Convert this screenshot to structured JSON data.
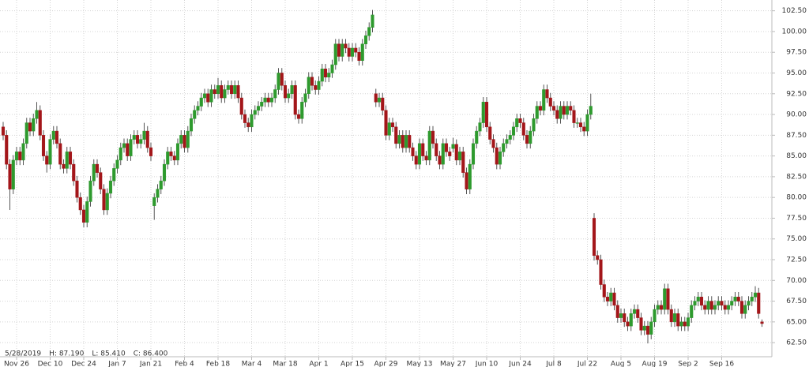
{
  "chart_data": {
    "type": "candlestick",
    "info": [
      "5/28/2019",
      "H: 87.190",
      "L: 85.410",
      "C: 86.400"
    ],
    "up_color": "#2e9a2e",
    "down_color": "#a3161a",
    "grid": true,
    "ylim": [
      60.8,
      103.8
    ],
    "yticks": [
      {
        "value": 62.5,
        "label": "62.50"
      },
      {
        "value": 65,
        "label": "65.00"
      },
      {
        "value": 67.5,
        "label": "67.50"
      },
      {
        "value": 70,
        "label": "70.00"
      },
      {
        "value": 72.5,
        "label": "72.50"
      },
      {
        "value": 75,
        "label": "75.00"
      },
      {
        "value": 77.5,
        "label": "77.50"
      },
      {
        "value": 80,
        "label": "80.00"
      },
      {
        "value": 82.5,
        "label": "82.50"
      },
      {
        "value": 85,
        "label": "85.00"
      },
      {
        "value": 87.5,
        "label": "87.50"
      },
      {
        "value": 90,
        "label": "90.00"
      },
      {
        "value": 92.5,
        "label": "92.50"
      },
      {
        "value": 95,
        "label": "95.00"
      },
      {
        "value": 97.5,
        "label": "97.50"
      },
      {
        "value": 100,
        "label": "100.00"
      },
      {
        "value": 102.5,
        "label": "102.50"
      }
    ],
    "categories": [
      null,
      null,
      null,
      null,
      "Nov 26",
      null,
      null,
      null,
      null,
      null,
      null,
      null,
      null,
      null,
      "Dec 10",
      null,
      null,
      null,
      null,
      null,
      null,
      null,
      null,
      null,
      "Dec 24",
      null,
      null,
      null,
      null,
      null,
      null,
      null,
      null,
      null,
      "Jan 7",
      null,
      null,
      null,
      null,
      null,
      null,
      null,
      null,
      null,
      "Jan 21",
      null,
      null,
      null,
      null,
      null,
      null,
      null,
      null,
      null,
      "Feb 4",
      null,
      null,
      null,
      null,
      null,
      null,
      null,
      null,
      null,
      "Feb 18",
      null,
      null,
      null,
      null,
      null,
      null,
      null,
      null,
      null,
      "Mar 4",
      null,
      null,
      null,
      null,
      null,
      null,
      null,
      null,
      null,
      "Mar 18",
      null,
      null,
      null,
      null,
      null,
      null,
      null,
      null,
      null,
      "Apr 1",
      null,
      null,
      null,
      null,
      null,
      null,
      null,
      null,
      null,
      "Apr 15",
      null,
      null,
      null,
      null,
      null,
      null,
      null,
      null,
      null,
      "Apr 29",
      null,
      null,
      null,
      null,
      null,
      null,
      null,
      null,
      null,
      "May 13",
      null,
      null,
      null,
      null,
      null,
      null,
      null,
      null,
      null,
      "May 27",
      null,
      null,
      null,
      null,
      null,
      null,
      null,
      null,
      null,
      "Jun 10",
      null,
      null,
      null,
      null,
      null,
      null,
      null,
      null,
      null,
      "Jun 24",
      null,
      null,
      null,
      null,
      null,
      null,
      null,
      null,
      null,
      "Jul 8",
      null,
      null,
      null,
      null,
      null,
      null,
      null,
      null,
      null,
      "Jul 22",
      null,
      null,
      null,
      null,
      null,
      null,
      null,
      null,
      null,
      "Aug 5",
      null,
      null,
      null,
      null,
      null,
      null,
      null,
      null,
      null,
      "Aug 19",
      null,
      null,
      null,
      null,
      null,
      null,
      null,
      null,
      null,
      "Sep 2",
      null,
      null,
      null,
      null,
      null,
      null,
      null,
      null,
      null,
      "Sep 16",
      null,
      null,
      null,
      null,
      null,
      null,
      null,
      null,
      null,
      null,
      null,
      null
    ],
    "open": [
      88.5,
      87.5,
      84.0,
      81.0,
      84.5,
      85.5,
      84.5,
      86.5,
      89.0,
      88.0,
      89.5,
      90.5,
      87.5,
      85.0,
      84.0,
      87.0,
      88.0,
      86.5,
      84.0,
      83.5,
      85.5,
      84.0,
      82.0,
      80.0,
      78.5,
      77.0,
      79.5,
      82.0,
      84.0,
      83.0,
      81.0,
      78.5,
      80.5,
      82.0,
      83.5,
      84.5,
      86.0,
      86.5,
      85.0,
      87.0,
      87.5,
      86.5,
      87.0,
      88.0,
      86.0,
      79.0,
      80.0,
      81.0,
      82.0,
      84.0,
      85.5,
      85.0,
      84.5,
      86.5,
      87.5,
      86.0,
      88.0,
      89.5,
      90.5,
      91.0,
      92.0,
      92.5,
      91.5,
      93.0,
      92.5,
      93.5,
      92.0,
      93.0,
      93.5,
      92.5,
      93.5,
      92.0,
      90.0,
      89.0,
      88.5,
      90.0,
      90.5,
      91.0,
      91.5,
      92.0,
      91.5,
      92.0,
      93.0,
      95.0,
      93.5,
      92.0,
      92.5,
      93.5,
      90.0,
      89.5,
      91.5,
      92.5,
      94.5,
      93.5,
      93.0,
      94.0,
      95.5,
      94.5,
      95.0,
      96.0,
      98.5,
      97.0,
      98.5,
      98.0,
      97.0,
      98.0,
      97.5,
      96.5,
      98.5,
      99.5,
      100.5,
      92.5,
      91.5,
      92.0,
      90.5,
      87.5,
      89.0,
      88.5,
      86.5,
      87.5,
      86.0,
      87.5,
      86.0,
      85.0,
      84.0,
      86.5,
      85.0,
      84.5,
      88.0,
      86.5,
      85.0,
      84.0,
      86.5,
      85.5,
      85.9,
      86.4,
      84.5,
      85.5,
      83.0,
      81.0,
      84.0,
      86.5,
      88.0,
      89.0,
      91.5,
      88.5,
      87.0,
      86.0,
      84.0,
      85.5,
      86.5,
      87.0,
      87.5,
      88.5,
      89.5,
      89.0,
      87.5,
      86.5,
      88.0,
      89.5,
      91.0,
      90.5,
      93.0,
      92.0,
      91.0,
      90.5,
      89.5,
      91.0,
      90.0,
      91.0,
      90.5,
      89.0,
      89.0,
      88.5,
      88.0,
      90.0,
      77.5,
      73.0,
      72.5,
      69.5,
      68.0,
      67.5,
      68.5,
      67.0,
      65.5,
      66.0,
      65.0,
      64.5,
      66.0,
      66.5,
      65.5,
      64.0,
      64.5,
      63.5,
      65.0,
      66.5,
      67.0,
      66.5,
      69.0,
      66.5,
      65.0,
      66.0,
      64.5,
      65.0,
      64.5,
      65.5,
      67.0,
      67.5,
      68.0,
      67.0,
      66.5,
      67.5,
      66.5,
      67.0,
      67.5,
      67.0,
      66.5,
      67.0,
      67.5,
      68.0,
      67.5,
      66.0,
      67.0,
      67.5,
      68.0,
      68.5,
      65.0
    ],
    "high": [
      89.1,
      88.1,
      84.6,
      85.1,
      86.1,
      86.1,
      87.1,
      89.6,
      89.6,
      90.1,
      91.5,
      91.1,
      88.1,
      85.6,
      87.6,
      88.6,
      88.6,
      87.1,
      84.6,
      86.1,
      86.1,
      84.6,
      82.6,
      80.6,
      79.1,
      80.1,
      82.6,
      84.6,
      84.6,
      83.6,
      81.6,
      81.1,
      82.6,
      84.1,
      85.1,
      86.6,
      87.1,
      87.1,
      87.6,
      88.1,
      88.1,
      87.6,
      89.0,
      88.6,
      86.6,
      80.5,
      81.6,
      82.6,
      84.6,
      86.1,
      86.1,
      85.6,
      87.1,
      88.1,
      88.1,
      88.6,
      90.1,
      91.1,
      91.6,
      92.6,
      93.1,
      93.1,
      93.6,
      93.6,
      94.4,
      94.1,
      93.6,
      94.1,
      94.1,
      94.1,
      94.1,
      92.6,
      90.6,
      89.6,
      90.6,
      91.1,
      91.6,
      92.1,
      92.6,
      92.6,
      92.6,
      93.6,
      95.6,
      95.6,
      94.1,
      93.1,
      94.1,
      94.1,
      90.6,
      92.1,
      93.1,
      95.1,
      95.1,
      94.1,
      94.6,
      96.1,
      96.1,
      95.6,
      96.6,
      99.1,
      99.1,
      99.1,
      99.1,
      98.6,
      98.6,
      98.6,
      98.1,
      99.1,
      100.1,
      101.1,
      102.6,
      93.1,
      92.6,
      92.6,
      91.1,
      89.6,
      89.6,
      89.1,
      88.1,
      88.1,
      88.1,
      88.1,
      86.6,
      85.6,
      87.1,
      87.1,
      85.6,
      88.6,
      88.6,
      87.1,
      85.6,
      87.1,
      87.1,
      86.1,
      87.19,
      87.0,
      86.1,
      86.1,
      83.6,
      84.6,
      87.1,
      88.6,
      89.6,
      92.1,
      92.1,
      89.1,
      87.6,
      86.6,
      86.1,
      87.1,
      87.6,
      88.1,
      89.1,
      90.1,
      90.1,
      89.6,
      88.1,
      88.6,
      90.1,
      91.6,
      91.6,
      93.6,
      93.6,
      92.6,
      91.6,
      91.1,
      91.6,
      91.6,
      91.6,
      91.6,
      91.1,
      89.6,
      89.6,
      89.1,
      90.6,
      92.5,
      78.1,
      73.6,
      73.1,
      70.1,
      68.6,
      69.1,
      69.1,
      67.6,
      66.6,
      66.6,
      65.6,
      66.6,
      67.1,
      67.1,
      66.1,
      65.1,
      65.1,
      65.6,
      67.1,
      67.6,
      67.6,
      69.6,
      69.6,
      67.1,
      66.6,
      66.6,
      65.6,
      65.6,
      66.1,
      67.6,
      68.1,
      68.6,
      68.6,
      67.6,
      68.1,
      68.1,
      67.6,
      68.1,
      68.1,
      67.6,
      67.6,
      68.1,
      68.6,
      68.6,
      68.1,
      67.6,
      68.1,
      68.6,
      69.3,
      69.1,
      65.3
    ],
    "low": [
      86.9,
      83.4,
      78.5,
      80.4,
      83.9,
      83.9,
      83.9,
      85.9,
      87.4,
      87.4,
      88.9,
      86.9,
      84.4,
      83.0,
      83.4,
      86.4,
      85.9,
      83.4,
      82.9,
      82.9,
      83.4,
      81.4,
      79.4,
      77.9,
      76.4,
      76.4,
      78.9,
      81.4,
      82.4,
      80.4,
      77.9,
      77.9,
      79.9,
      81.4,
      82.9,
      83.9,
      85.4,
      84.4,
      84.4,
      86.4,
      85.9,
      85.9,
      86.4,
      85.4,
      84.4,
      77.3,
      79.4,
      80.4,
      81.4,
      83.4,
      84.4,
      83.9,
      83.9,
      85.9,
      85.4,
      85.4,
      87.4,
      88.9,
      89.9,
      90.4,
      91.4,
      90.9,
      90.9,
      91.9,
      91.9,
      91.4,
      91.4,
      92.4,
      91.9,
      91.9,
      91.4,
      89.4,
      88.4,
      87.9,
      87.9,
      89.4,
      89.9,
      90.4,
      90.9,
      90.9,
      90.9,
      91.4,
      92.4,
      92.9,
      91.4,
      91.4,
      91.9,
      89.4,
      88.9,
      88.9,
      90.9,
      91.9,
      92.9,
      92.4,
      92.4,
      93.4,
      93.9,
      93.9,
      94.4,
      95.4,
      96.4,
      96.4,
      97.4,
      96.4,
      96.4,
      96.9,
      95.9,
      95.9,
      97.9,
      98.9,
      99.9,
      90.9,
      90.9,
      89.9,
      86.9,
      86.9,
      87.9,
      85.9,
      85.9,
      85.4,
      85.4,
      85.4,
      84.4,
      83.4,
      83.4,
      84.4,
      83.9,
      83.9,
      85.9,
      84.4,
      83.4,
      83.4,
      84.9,
      84.4,
      85.41,
      83.9,
      83.9,
      82.4,
      80.4,
      80.4,
      83.4,
      85.9,
      87.4,
      88.4,
      87.9,
      86.4,
      85.4,
      83.4,
      83.4,
      84.9,
      85.9,
      86.4,
      86.9,
      87.9,
      88.4,
      86.9,
      85.9,
      85.9,
      87.4,
      88.9,
      89.9,
      89.9,
      91.4,
      90.4,
      89.9,
      88.9,
      88.9,
      89.4,
      89.4,
      89.9,
      88.4,
      88.4,
      87.9,
      87.4,
      87.4,
      89.4,
      72.4,
      71.9,
      68.9,
      67.4,
      66.9,
      66.9,
      66.4,
      64.9,
      64.9,
      64.4,
      63.9,
      63.9,
      65.4,
      64.9,
      63.4,
      63.4,
      62.4,
      62.9,
      64.4,
      65.9,
      65.9,
      65.9,
      65.9,
      64.4,
      64.4,
      63.9,
      63.9,
      63.9,
      63.9,
      64.9,
      66.4,
      66.9,
      66.4,
      65.9,
      65.9,
      65.9,
      65.9,
      66.4,
      66.4,
      65.9,
      65.9,
      66.4,
      66.9,
      66.9,
      65.4,
      65.4,
      66.4,
      66.9,
      67.4,
      65.4,
      64.4
    ],
    "close": [
      87.5,
      84.0,
      81.0,
      84.5,
      85.5,
      84.5,
      86.5,
      89.0,
      88.0,
      89.5,
      90.5,
      87.5,
      85.0,
      84.0,
      87.0,
      88.0,
      86.5,
      84.0,
      83.5,
      85.5,
      84.0,
      82.0,
      80.0,
      78.5,
      77.0,
      79.5,
      82.0,
      84.0,
      83.0,
      81.0,
      78.5,
      80.5,
      82.0,
      83.5,
      84.5,
      86.0,
      86.5,
      85.0,
      87.0,
      87.5,
      86.5,
      87.0,
      88.0,
      86.0,
      85.0,
      80.0,
      81.0,
      82.0,
      84.0,
      85.5,
      85.0,
      84.5,
      86.5,
      87.5,
      86.0,
      88.0,
      89.5,
      90.5,
      91.0,
      92.0,
      92.5,
      91.5,
      93.0,
      92.5,
      93.5,
      92.0,
      93.0,
      93.5,
      92.5,
      93.5,
      92.0,
      90.0,
      89.0,
      88.5,
      90.0,
      90.5,
      91.0,
      91.5,
      92.0,
      91.5,
      92.0,
      93.0,
      95.0,
      93.5,
      92.0,
      92.5,
      93.5,
      90.0,
      89.5,
      91.5,
      92.5,
      94.5,
      93.5,
      93.0,
      94.0,
      95.5,
      94.5,
      95.0,
      96.0,
      98.5,
      97.0,
      98.5,
      98.0,
      97.0,
      98.0,
      97.5,
      96.5,
      98.5,
      99.5,
      100.5,
      102.0,
      91.5,
      92.0,
      90.5,
      87.5,
      89.0,
      88.5,
      86.5,
      87.5,
      86.0,
      87.5,
      86.0,
      85.0,
      84.0,
      86.5,
      85.0,
      84.5,
      88.0,
      86.5,
      85.0,
      84.0,
      86.5,
      85.5,
      85.0,
      86.4,
      84.5,
      85.5,
      83.0,
      81.0,
      84.0,
      86.5,
      88.0,
      89.0,
      91.5,
      88.5,
      87.0,
      86.0,
      84.0,
      85.5,
      86.5,
      87.0,
      87.5,
      88.5,
      89.5,
      89.0,
      87.5,
      86.5,
      88.0,
      89.5,
      91.0,
      90.5,
      93.0,
      92.0,
      91.0,
      90.5,
      89.5,
      91.0,
      90.0,
      91.0,
      90.5,
      89.0,
      89.0,
      88.5,
      88.0,
      90.0,
      91.0,
      73.0,
      72.5,
      69.5,
      68.0,
      67.5,
      68.5,
      67.0,
      65.5,
      66.0,
      65.0,
      64.5,
      66.0,
      66.5,
      65.5,
      64.0,
      64.5,
      63.5,
      65.0,
      66.5,
      67.0,
      66.5,
      69.0,
      66.5,
      65.0,
      66.0,
      64.5,
      65.0,
      64.5,
      65.5,
      67.0,
      67.5,
      68.0,
      67.0,
      66.5,
      67.5,
      66.5,
      67.0,
      67.5,
      67.0,
      66.5,
      67.0,
      67.5,
      68.0,
      67.5,
      66.0,
      67.0,
      67.5,
      68.0,
      68.5,
      66.0,
      64.8
    ]
  }
}
